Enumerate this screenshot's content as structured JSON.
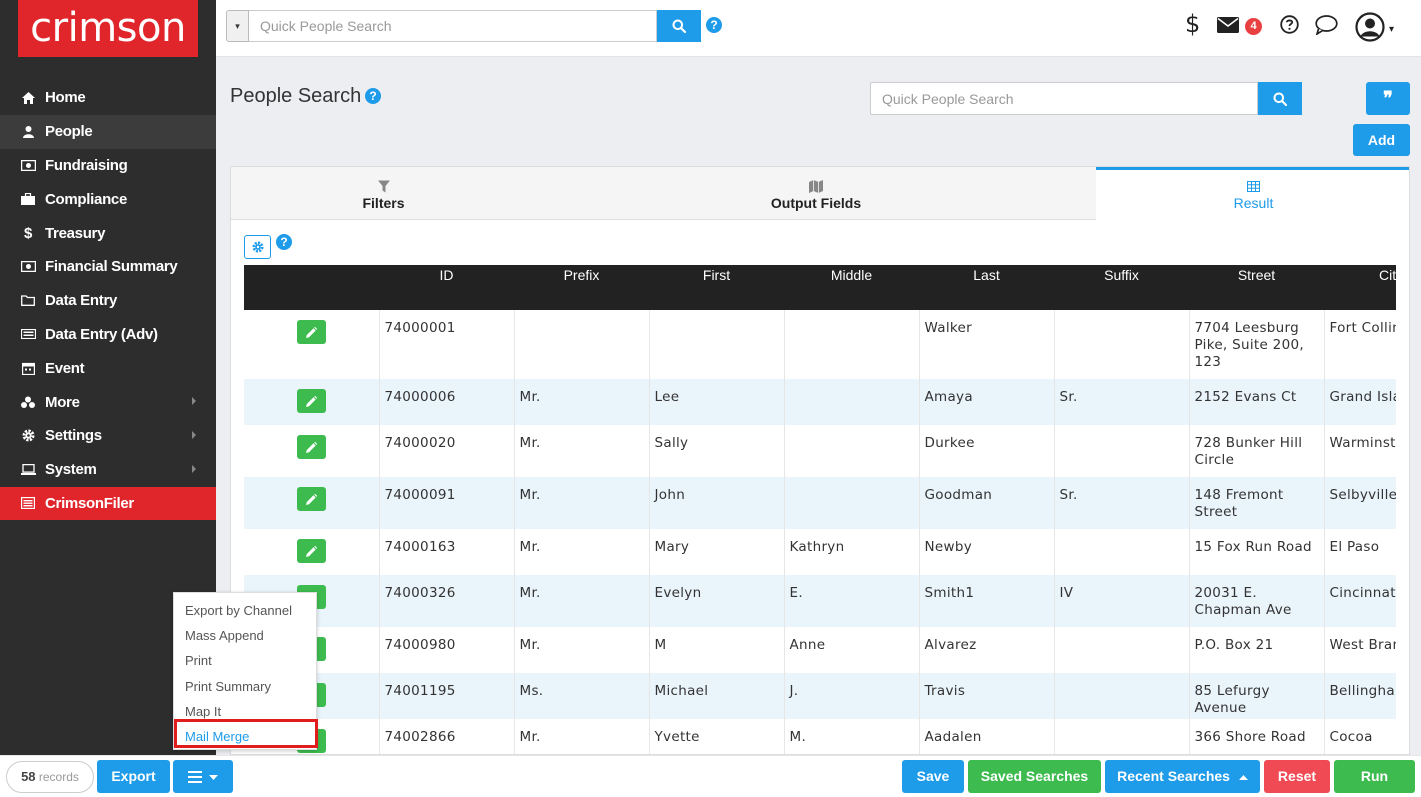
{
  "brand": {
    "logo_text": "crimson"
  },
  "sidebar": {
    "items": [
      {
        "label": "Home",
        "icon": "home-icon",
        "submenu": false
      },
      {
        "label": "People",
        "icon": "user-icon",
        "submenu": false,
        "active": true
      },
      {
        "label": "Fundraising",
        "icon": "money-icon",
        "submenu": false
      },
      {
        "label": "Compliance",
        "icon": "briefcase-icon",
        "submenu": false
      },
      {
        "label": "Treasury",
        "icon": "dollar-icon",
        "submenu": false
      },
      {
        "label": "Financial Summary",
        "icon": "money-icon",
        "submenu": false
      },
      {
        "label": "Data Entry",
        "icon": "folder-icon",
        "submenu": false
      },
      {
        "label": "Data Entry (Adv)",
        "icon": "keyboard-icon",
        "submenu": false
      },
      {
        "label": "Event",
        "icon": "calendar-icon",
        "submenu": false
      },
      {
        "label": "More",
        "icon": "cubes-icon",
        "submenu": true
      },
      {
        "label": "Settings",
        "icon": "gear-icon",
        "submenu": true
      },
      {
        "label": "System",
        "icon": "laptop-icon",
        "submenu": true
      },
      {
        "label": "CrimsonFiler",
        "icon": "filer-icon",
        "submenu": false,
        "highlight": true
      }
    ]
  },
  "topbar": {
    "search_placeholder": "Quick People Search",
    "dropdown_glyph": "▾",
    "help_glyph": "?",
    "mail_badge": "4",
    "dollar_glyph": "$",
    "avatar_caret": "▾"
  },
  "page": {
    "title": "People Search",
    "help_glyph": "?",
    "search_placeholder": "Quick People Search",
    "quote_glyph": "❞",
    "add_label": "Add"
  },
  "tabs": [
    {
      "label": "Filters",
      "icon": "filter-icon"
    },
    {
      "label": "Output Fields",
      "icon": "map-icon"
    },
    {
      "label": "Result",
      "icon": "table-icon",
      "active": true
    }
  ],
  "table": {
    "columns": [
      "",
      "ID",
      "Prefix",
      "First",
      "Middle",
      "Last",
      "Suffix",
      "Street",
      "City"
    ],
    "rows": [
      {
        "id": "74000001",
        "prefix": "",
        "first": "",
        "middle": "",
        "last": "Walker",
        "suffix": "",
        "street": "7704 Leesburg Pike, Suite 200, 123",
        "city": "Fort Collins"
      },
      {
        "id": "74000006",
        "prefix": "Mr.",
        "first": "Lee",
        "middle": "",
        "last": "Amaya",
        "suffix": "Sr.",
        "street": "2152 Evans Ct",
        "city": "Grand Island"
      },
      {
        "id": "74000020",
        "prefix": "Mr.",
        "first": "Sally",
        "middle": "",
        "last": "Durkee",
        "suffix": "",
        "street": "728 Bunker Hill Circle",
        "city": "Warminster"
      },
      {
        "id": "74000091",
        "prefix": "Mr.",
        "first": "John",
        "middle": "",
        "last": "Goodman",
        "suffix": "Sr.",
        "street": "148 Fremont Street",
        "city": "Selbyville"
      },
      {
        "id": "74000163",
        "prefix": "Mr.",
        "first": "Mary",
        "middle": "Kathryn",
        "last": "Newby",
        "suffix": "",
        "street": "15 Fox Run Road",
        "city": "El Paso"
      },
      {
        "id": "74000326",
        "prefix": "Mr.",
        "first": "Evelyn",
        "middle": "E.",
        "last": "Smith1",
        "suffix": "IV",
        "street": "20031 E. Chapman Ave",
        "city": "Cincinnati"
      },
      {
        "id": "74000980",
        "prefix": "Mr.",
        "first": "M",
        "middle": "Anne",
        "last": "Alvarez",
        "suffix": "",
        "street": "P.O. Box 21",
        "city": "West Branch"
      },
      {
        "id": "74001195",
        "prefix": "Ms.",
        "first": "Michael",
        "middle": "J.",
        "last": "Travis",
        "suffix": "",
        "street": "85 Lefurgy Avenue",
        "city": "Bellingham"
      },
      {
        "id": "74002866",
        "prefix": "Mr.",
        "first": "Yvette",
        "middle": "M.",
        "last": "Aadalen",
        "suffix": "",
        "street": "366 Shore Road",
        "city": "Cocoa"
      }
    ]
  },
  "popup_menu": {
    "items": [
      "Export by Channel",
      "Mass Append",
      "Print",
      "Print Summary",
      "Map It",
      "Mail Merge"
    ],
    "highlighted": "Mail Merge"
  },
  "bottombar": {
    "records_count": "58",
    "records_label": "records",
    "export_label": "Export",
    "save_label": "Save",
    "saved_searches_label": "Saved Searches",
    "recent_searches_label": "Recent Searches",
    "reset_label": "Reset",
    "run_label": "Run"
  },
  "colors": {
    "brand_red": "#e0262b",
    "accent_blue": "#1e9be9",
    "edit_green": "#3dbb4f",
    "reset_red": "#f04a55",
    "sidebar_bg": "#2d2d2d"
  }
}
